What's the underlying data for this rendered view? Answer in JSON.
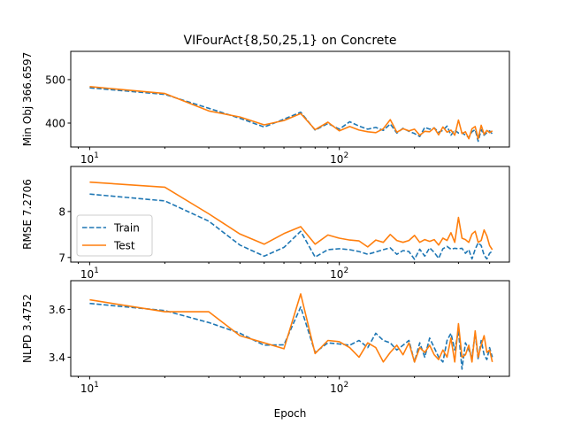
{
  "chart_data": {
    "type": "line",
    "title": "VIFourAct{8,50,25,1} on Concrete",
    "xlabel": "Epoch",
    "xscale": "log",
    "xlim": [
      8.4,
      480
    ],
    "colors": {
      "Train": "#1f77b4",
      "Test": "#ff7f0e"
    },
    "legend": {
      "panel": 1,
      "placement": "lower-left",
      "entries": [
        "Train",
        "Test"
      ]
    },
    "panels": [
      {
        "ylabel": "Min Obj 366.6597",
        "ylim": [
          345,
          565
        ],
        "yticks": [
          400,
          500
        ],
        "xticks": [
          10,
          100
        ],
        "xtick_labels_shown": true,
        "series": [
          {
            "name": "Train",
            "style": "dashed",
            "x": [
              10,
              20,
              30,
              40,
              50,
              60,
              70,
              80,
              90,
              100,
              110,
              120,
              130,
              140,
              150,
              160,
              170,
              180,
              190,
              200,
              210,
              220,
              230,
              240,
              250,
              260,
              270,
              280,
              290,
              300,
              310,
              320,
              330,
              340,
              350,
              360,
              370,
              380,
              390,
              400,
              410
            ],
            "y": [
              481,
              466,
              434,
              411,
              391,
              409,
              425,
              384,
              399,
              386,
              403,
              393,
              386,
              390,
              383,
              398,
              377,
              388,
              381,
              376,
              369,
              390,
              386,
              389,
              379,
              383,
              393,
              372,
              384,
              377,
              378,
              372,
              367,
              380,
              385,
              358,
              385,
              372,
              378,
              382,
              375
            ]
          },
          {
            "name": "Test",
            "style": "solid",
            "x": [
              10,
              20,
              30,
              40,
              50,
              60,
              70,
              80,
              90,
              100,
              110,
              120,
              130,
              140,
              150,
              160,
              170,
              180,
              190,
              200,
              210,
              220,
              230,
              240,
              250,
              260,
              270,
              280,
              290,
              300,
              310,
              320,
              330,
              340,
              350,
              360,
              370,
              380,
              390,
              400,
              410
            ],
            "y": [
              484,
              468,
              428,
              414,
              396,
              406,
              422,
              385,
              402,
              382,
              392,
              384,
              380,
              378,
              387,
              408,
              379,
              387,
              382,
              386,
              372,
              381,
              380,
              389,
              373,
              391,
              379,
              384,
              372,
              407,
              376,
              380,
              364,
              387,
              392,
              364,
              395,
              374,
              383,
              378,
              382
            ]
          }
        ]
      },
      {
        "ylabel": "RMSE 7.2706",
        "ylim": [
          6.9,
          8.98
        ],
        "yticks": [
          7,
          8
        ],
        "xticks": [
          10,
          100
        ],
        "xtick_labels_shown": true,
        "series": [
          {
            "name": "Train",
            "style": "dashed",
            "x": [
              10,
              20,
              30,
              40,
              50,
              60,
              70,
              80,
              90,
              100,
              110,
              120,
              130,
              140,
              150,
              160,
              170,
              180,
              190,
              200,
              210,
              220,
              230,
              240,
              250,
              260,
              270,
              280,
              290,
              300,
              310,
              320,
              330,
              340,
              350,
              360,
              370,
              380,
              390,
              400,
              410
            ],
            "y": [
              8.38,
              8.23,
              7.79,
              7.27,
              7.03,
              7.22,
              7.57,
              7.01,
              7.17,
              7.19,
              7.17,
              7.13,
              7.07,
              7.12,
              7.17,
              7.21,
              7.07,
              7.15,
              7.13,
              6.96,
              7.18,
              7.03,
              7.21,
              7.11,
              6.98,
              7.19,
              7.24,
              7.18,
              7.2,
              7.19,
              7.2,
              7.09,
              7.17,
              6.97,
              7.18,
              7.32,
              7.26,
              7.05,
              6.97,
              7.09,
              7.14
            ]
          },
          {
            "name": "Test",
            "style": "solid",
            "x": [
              10,
              20,
              30,
              40,
              50,
              60,
              70,
              80,
              90,
              100,
              110,
              120,
              130,
              140,
              150,
              160,
              170,
              180,
              190,
              200,
              210,
              220,
              230,
              240,
              250,
              260,
              270,
              280,
              290,
              300,
              310,
              320,
              330,
              340,
              350,
              360,
              370,
              380,
              390,
              400,
              410
            ],
            "y": [
              8.64,
              8.53,
              7.95,
              7.51,
              7.29,
              7.52,
              7.67,
              7.29,
              7.49,
              7.42,
              7.38,
              7.36,
              7.23,
              7.38,
              7.33,
              7.5,
              7.37,
              7.33,
              7.37,
              7.48,
              7.33,
              7.39,
              7.35,
              7.39,
              7.27,
              7.42,
              7.37,
              7.54,
              7.33,
              7.87,
              7.42,
              7.39,
              7.33,
              7.51,
              7.57,
              7.33,
              7.37,
              7.6,
              7.47,
              7.26,
              7.17
            ]
          }
        ]
      },
      {
        "ylabel": "NLPD 3.4752",
        "ylim": [
          3.32,
          3.72
        ],
        "yticks": [
          3.4,
          3.6
        ],
        "xticks": [
          10,
          100
        ],
        "xtick_labels_shown": true,
        "series": [
          {
            "name": "Train",
            "style": "dashed",
            "x": [
              10,
              20,
              30,
              40,
              50,
              60,
              70,
              80,
              90,
              100,
              110,
              120,
              130,
              140,
              150,
              160,
              170,
              180,
              190,
              200,
              210,
              220,
              230,
              240,
              250,
              260,
              270,
              280,
              290,
              300,
              310,
              320,
              330,
              340,
              350,
              360,
              370,
              380,
              390,
              400,
              410
            ],
            "y": [
              3.625,
              3.595,
              3.545,
              3.5,
              3.45,
              3.452,
              3.61,
              3.42,
              3.46,
              3.455,
              3.45,
              3.47,
              3.44,
              3.5,
              3.47,
              3.46,
              3.43,
              3.45,
              3.47,
              3.38,
              3.46,
              3.4,
              3.48,
              3.44,
              3.4,
              3.38,
              3.47,
              3.5,
              3.43,
              3.51,
              3.35,
              3.46,
              3.43,
              3.4,
              3.5,
              3.39,
              3.47,
              3.41,
              3.39,
              3.44,
              3.4
            ]
          },
          {
            "name": "Test",
            "style": "solid",
            "x": [
              10,
              20,
              30,
              40,
              50,
              60,
              70,
              80,
              90,
              100,
              110,
              120,
              130,
              140,
              150,
              160,
              170,
              180,
              190,
              200,
              210,
              220,
              230,
              240,
              250,
              260,
              270,
              280,
              290,
              300,
              310,
              320,
              330,
              340,
              350,
              360,
              370,
              380,
              390,
              400,
              410
            ],
            "y": [
              3.64,
              3.59,
              3.59,
              3.49,
              3.46,
              3.435,
              3.665,
              3.415,
              3.47,
              3.465,
              3.44,
              3.4,
              3.46,
              3.44,
              3.38,
              3.42,
              3.45,
              3.41,
              3.46,
              3.38,
              3.44,
              3.42,
              3.45,
              3.41,
              3.39,
              3.43,
              3.4,
              3.48,
              3.38,
              3.54,
              3.4,
              3.41,
              3.45,
              3.38,
              3.51,
              3.4,
              3.45,
              3.49,
              3.42,
              3.43,
              3.38
            ]
          }
        ]
      }
    ]
  }
}
